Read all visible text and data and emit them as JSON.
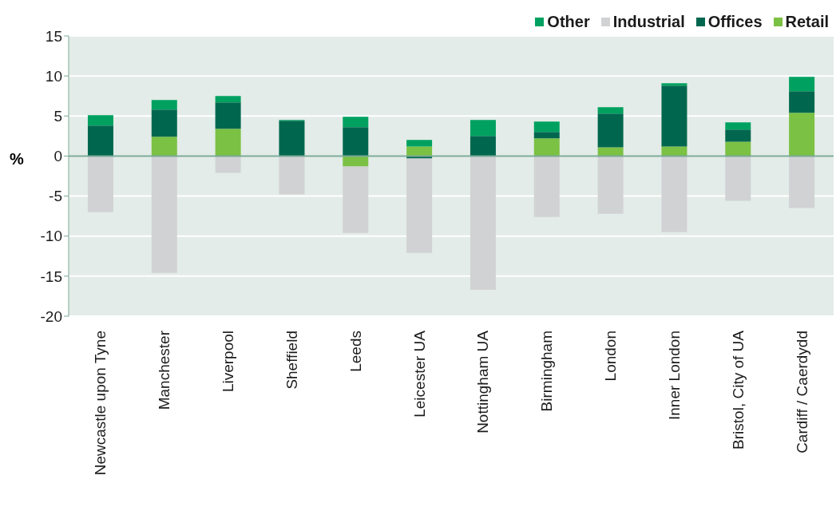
{
  "chart_data": {
    "type": "bar",
    "stacked": true,
    "ylabel": "%",
    "categories": [
      "Newcastle upon Tyne",
      "Manchester",
      "Liverpool",
      "Sheffield",
      "Leeds",
      "Leicester UA",
      "Nottingham UA",
      "Birmingham",
      "London",
      "Inner London",
      "Bristol, City of UA",
      "Cardiff / Caerdydd"
    ],
    "series": [
      {
        "name": "Retail",
        "color": "#7bc143",
        "values": [
          0,
          2.4,
          3.4,
          0,
          -1.3,
          1.2,
          0,
          2.2,
          1.1,
          1.2,
          1.8,
          5.4
        ]
      },
      {
        "name": "Offices",
        "color": "#00674e",
        "values": [
          3.8,
          3.4,
          3.3,
          4.4,
          3.6,
          -0.3,
          2.5,
          0.8,
          4.2,
          7.6,
          1.5,
          2.7
        ]
      },
      {
        "name": "Industrial",
        "color": "#d1d2d4",
        "values": [
          -7.0,
          -14.6,
          -2.1,
          -4.8,
          -8.3,
          -11.8,
          -16.7,
          -7.6,
          -7.2,
          -9.5,
          -5.6,
          -6.5
        ]
      },
      {
        "name": "Other",
        "color": "#00a160",
        "values": [
          1.3,
          1.2,
          0.8,
          0.1,
          1.3,
          0.8,
          2.0,
          1.3,
          0.8,
          0.3,
          0.9,
          1.8
        ]
      }
    ],
    "ylim": [
      -20,
      15
    ],
    "yticks": [
      -20,
      -15,
      -10,
      -5,
      0,
      5,
      10,
      15
    ],
    "grid": "y",
    "legend": "top right",
    "ref_lines": [
      {
        "axis": "y",
        "value": 0,
        "color": "#7aa996"
      }
    ]
  }
}
